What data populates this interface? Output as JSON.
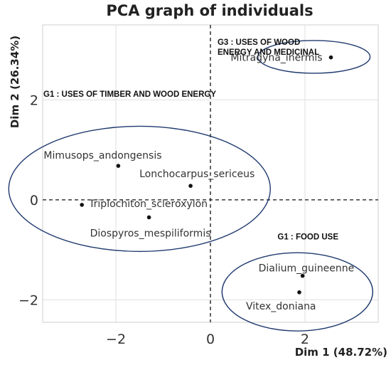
{
  "chart_data": {
    "type": "scatter",
    "title": "PCA graph of individuals",
    "xlabel": "Dim 1 (48.72%)",
    "ylabel": "Dim 2 (26.34%)",
    "xlim": [
      -3.55,
      3.55
    ],
    "ylim": [
      -2.45,
      3.5
    ],
    "x_ticks": [
      -2,
      0,
      2
    ],
    "y_ticks": [
      -2,
      0,
      2
    ],
    "grid": true,
    "reference_lines": {
      "x": 0,
      "y": 0,
      "style": "dashed"
    },
    "points": [
      {
        "label": "Mitragyna_inermis",
        "x": 2.55,
        "y": 2.85
      },
      {
        "label": "Mimusops_andongensis",
        "x": -1.95,
        "y": 0.68
      },
      {
        "label": "Lonchocarpus_sericeus",
        "x": -0.42,
        "y": 0.28
      },
      {
        "label": "Triplochiton_scleroxylon",
        "x": -2.72,
        "y": -0.1
      },
      {
        "label": "Diospyros_mespiliformis",
        "x": -1.3,
        "y": -0.35
      },
      {
        "label": "Dialium_guineenne",
        "x": 1.95,
        "y": -1.52
      },
      {
        "label": "Vitex_doniana",
        "x": 1.88,
        "y": -1.85
      }
    ],
    "groups": [
      {
        "label": "G3 : USES OF WOOD\nENERGY AND MEDICINAL",
        "color": "#1f3a6e"
      },
      {
        "label": "G1 : USES OF TIMBER AND WOOD ENERGY",
        "color": "#1f3a6e"
      },
      {
        "label": "G1 : FOOD USE",
        "color": "#1f3a6e"
      }
    ]
  }
}
